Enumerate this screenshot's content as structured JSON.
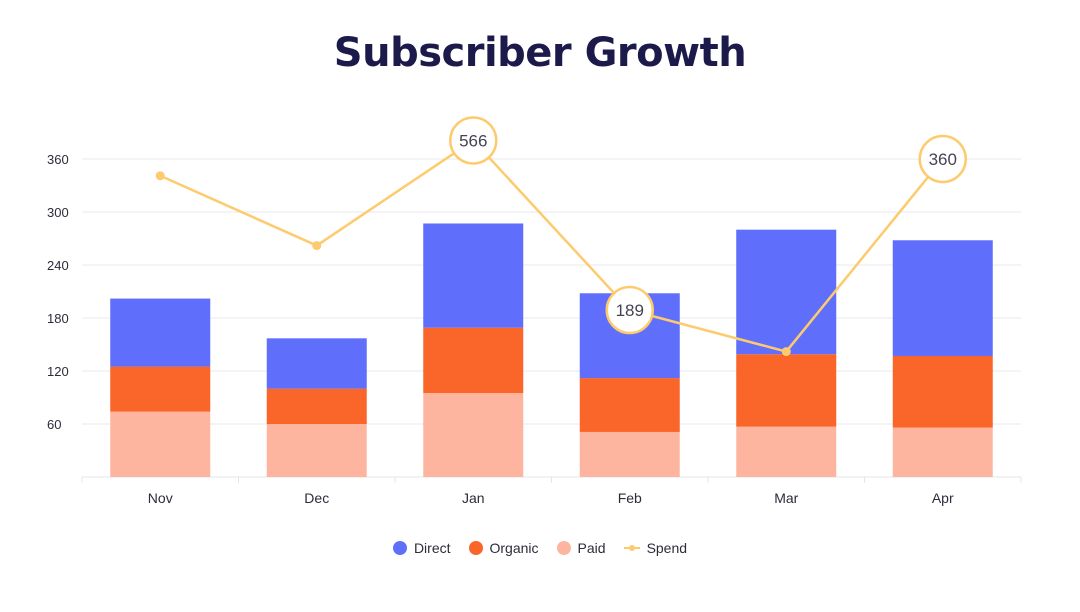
{
  "chart_data": {
    "type": "bar",
    "title": "Subscriber Growth",
    "categories": [
      "Nov",
      "Dec",
      "Jan",
      "Feb",
      "Mar",
      "Apr"
    ],
    "stacked": true,
    "series": [
      {
        "name": "Paid",
        "color": "#fdb5a0",
        "values": [
          74,
          60,
          95,
          51,
          57,
          56
        ]
      },
      {
        "name": "Organic",
        "color": "#fa6529",
        "values": [
          51,
          40,
          74,
          61,
          82,
          81
        ]
      },
      {
        "name": "Direct",
        "color": "#5f6ffc",
        "values": [
          77,
          57,
          118,
          96,
          141,
          131
        ]
      }
    ],
    "line_series": {
      "name": "Spend",
      "color": "#fdcb6e",
      "values": [
        341,
        262,
        566,
        189,
        142,
        360
      ],
      "labeled_points": [
        2,
        3,
        5
      ]
    },
    "yticks": [
      60,
      120,
      180,
      240,
      300,
      360
    ],
    "ylim": [
      0,
      360
    ],
    "legend": [
      "Direct",
      "Organic",
      "Paid",
      "Spend"
    ],
    "legend_position": "bottom",
    "grid": true
  }
}
